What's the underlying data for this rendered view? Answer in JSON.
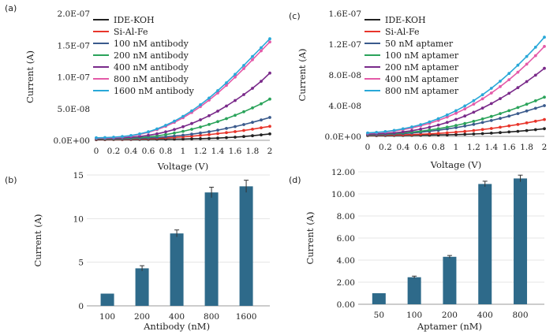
{
  "chart_data": [
    {
      "panel": "(a)",
      "type": "line",
      "xlabel": "Voltage (V)",
      "ylabel": "Current (A)",
      "x": [
        0,
        0.1,
        0.2,
        0.3,
        0.4,
        0.5,
        0.6,
        0.7,
        0.8,
        0.9,
        1.0,
        1.1,
        1.2,
        1.3,
        1.4,
        1.5,
        1.6,
        1.7,
        1.8,
        1.9,
        2.0
      ],
      "x_tick_labels": [
        "0",
        "0.2",
        "0.4",
        "0.6",
        "0.8",
        "1",
        "1.2",
        "1.4",
        "1.6",
        "1.8",
        "2"
      ],
      "y_tick_labels": [
        "0.0E+00",
        "5.0E-08",
        "1.0E-07",
        "1.5E-07",
        "2.0E-07"
      ],
      "xlim": [
        0,
        2
      ],
      "ylim": [
        0,
        2e-07
      ],
      "legend_position": "top-left",
      "series": [
        {
          "name": "IDE-KOH",
          "color": "#222222",
          "values": [
            1e-09,
            1.1e-09,
            1.2e-09,
            1.3e-09,
            1.4e-09,
            1.5e-09,
            1.6e-09,
            1.7e-09,
            1.8e-09,
            1.9e-09,
            2e-09,
            2.3e-09,
            2.6e-09,
            3e-09,
            3.5e-09,
            4.2e-09,
            5e-09,
            6e-09,
            7.2e-09,
            8.6e-09,
            1e-08
          ]
        },
        {
          "name": "Si-Al-Fe",
          "color": "#e8352b",
          "values": [
            1.5e-09,
            1.6e-09,
            1.7e-09,
            1.8e-09,
            2e-09,
            2.3e-09,
            2.7e-09,
            3.2e-09,
            3.8e-09,
            4.6e-09,
            5.5e-09,
            6.5e-09,
            7.7e-09,
            9e-09,
            1.05e-08,
            1.2e-08,
            1.37e-08,
            1.55e-08,
            1.75e-08,
            1.98e-08,
            2.2e-08
          ]
        },
        {
          "name": "100 nM antibody",
          "color": "#3a5a8c",
          "values": [
            2e-09,
            2.1e-09,
            2.2e-09,
            2.4e-09,
            2.7e-09,
            3.1e-09,
            3.7e-09,
            4.5e-09,
            5.5e-09,
            6.7e-09,
            8.1e-09,
            9.7e-09,
            1.15e-08,
            1.36e-08,
            1.6e-08,
            1.87e-08,
            2.16e-08,
            2.48e-08,
            2.83e-08,
            3.2e-08,
            3.6e-08
          ]
        },
        {
          "name": "200 nM antibody",
          "color": "#2aa35a",
          "values": [
            2.5e-09,
            2.6e-09,
            2.8e-09,
            3.1e-09,
            3.6e-09,
            4.4e-09,
            5.5e-09,
            7e-09,
            9e-09,
            1.14e-08,
            1.42e-08,
            1.74e-08,
            2.1e-08,
            2.5e-08,
            2.94e-08,
            3.42e-08,
            3.94e-08,
            4.5e-08,
            5.1e-08,
            5.75e-08,
            6.5e-08
          ]
        },
        {
          "name": "400 nM antibody",
          "color": "#7a2a8a",
          "values": [
            3e-09,
            3.2e-09,
            3.5e-09,
            4e-09,
            4.8e-09,
            6e-09,
            7.8e-09,
            1.02e-08,
            1.33e-08,
            1.7e-08,
            2.14e-08,
            2.65e-08,
            3.23e-08,
            3.88e-08,
            4.6e-08,
            5.4e-08,
            6.27e-08,
            7.2e-08,
            8.2e-08,
            9.3e-08,
            1.06e-07
          ]
        },
        {
          "name": "800 nM antibody",
          "color": "#e45aa8",
          "values": [
            3.5e-09,
            3.8e-09,
            4.3e-09,
            5.2e-09,
            6.8e-09,
            9.2e-09,
            1.25e-08,
            1.68e-08,
            2.2e-08,
            2.82e-08,
            3.55e-08,
            4.38e-08,
            5.3e-08,
            6.33e-08,
            7.45e-08,
            8.66e-08,
            9.96e-08,
            1.13e-07,
            1.27e-07,
            1.41e-07,
            1.55e-07
          ]
        },
        {
          "name": "1600 nM antibody",
          "color": "#29a8d8",
          "values": [
            4e-09,
            4.4e-09,
            5e-09,
            6e-09,
            7.6e-09,
            1e-08,
            1.34e-08,
            1.8e-08,
            2.36e-08,
            3.02e-08,
            3.78e-08,
            4.64e-08,
            5.6e-08,
            6.66e-08,
            7.82e-08,
            9.07e-08,
            1.04e-07,
            1.18e-07,
            1.32e-07,
            1.46e-07,
            1.6e-07
          ]
        }
      ]
    },
    {
      "panel": "(b)",
      "type": "bar",
      "xlabel": "Antibody (nM)",
      "ylabel": "Current (A)",
      "categories": [
        "100",
        "200",
        "400",
        "800",
        "1600"
      ],
      "values": [
        1.4,
        4.3,
        8.3,
        13.0,
        13.7
      ],
      "errors": [
        0,
        0.3,
        0.4,
        0.6,
        0.7
      ],
      "y_tick_labels": [
        "0",
        "5",
        "10",
        "15"
      ],
      "ylim": [
        0,
        15
      ],
      "color": "#2e6a8a"
    },
    {
      "panel": "(c)",
      "type": "line",
      "xlabel": "Voltage (V)",
      "ylabel": "Current (A)",
      "x": [
        0,
        0.1,
        0.2,
        0.3,
        0.4,
        0.5,
        0.6,
        0.7,
        0.8,
        0.9,
        1.0,
        1.1,
        1.2,
        1.3,
        1.4,
        1.5,
        1.6,
        1.7,
        1.8,
        1.9,
        2.0
      ],
      "x_tick_labels": [
        "0",
        "0.2",
        "0.4",
        "0.6",
        "0.8",
        "1",
        "1.2",
        "1.4",
        "1.6",
        "1.8",
        "2"
      ],
      "y_tick_labels": [
        "0.0E+00",
        "4.0E-08",
        "8.0E-08",
        "1.2E-07",
        "1.6E-07"
      ],
      "xlim": [
        0,
        2
      ],
      "ylim": [
        0,
        1.6e-07
      ],
      "legend_position": "top-left",
      "series": [
        {
          "name": "IDE-KOH",
          "color": "#222222",
          "values": [
            1e-09,
            1e-09,
            1.1e-09,
            1.2e-09,
            1.3e-09,
            1.4e-09,
            1.5e-09,
            1.6e-09,
            1.8e-09,
            2e-09,
            2.3e-09,
            2.7e-09,
            3.1e-09,
            3.6e-09,
            4.2e-09,
            4.9e-09,
            5.7e-09,
            6.6e-09,
            7.6e-09,
            8.7e-09,
            1e-08
          ]
        },
        {
          "name": "Si-Al-Fe",
          "color": "#e8352b",
          "values": [
            1.5e-09,
            1.6e-09,
            1.7e-09,
            1.9e-09,
            2.1e-09,
            2.4e-09,
            2.8e-09,
            3.3e-09,
            3.9e-09,
            4.6e-09,
            5.5e-09,
            6.5e-09,
            7.6e-09,
            8.9e-09,
            1.03e-08,
            1.19e-08,
            1.36e-08,
            1.55e-08,
            1.75e-08,
            1.97e-08,
            2.2e-08
          ]
        },
        {
          "name": "50 nM aptamer",
          "color": "#3a5a8c",
          "values": [
            2e-09,
            2.2e-09,
            2.5e-09,
            3e-09,
            3.6e-09,
            4.4e-09,
            5.4e-09,
            6.6e-09,
            8e-09,
            9.6e-09,
            1.14e-08,
            1.34e-08,
            1.56e-08,
            1.8e-08,
            2.06e-08,
            2.34e-08,
            2.64e-08,
            2.96e-08,
            3.3e-08,
            3.65e-08,
            4e-08
          ]
        },
        {
          "name": "100 nM aptamer",
          "color": "#2aa35a",
          "values": [
            2.5e-09,
            2.8e-09,
            3.2e-09,
            3.8e-09,
            4.6e-09,
            5.6e-09,
            6.8e-09,
            8.3e-09,
            1e-08,
            1.2e-08,
            1.43e-08,
            1.68e-08,
            1.96e-08,
            2.27e-08,
            2.6e-08,
            2.96e-08,
            3.34e-08,
            3.75e-08,
            4.18e-08,
            4.63e-08,
            5.1e-08
          ]
        },
        {
          "name": "200 nM aptamer",
          "color": "#7a2a8a",
          "values": [
            3e-09,
            3.3e-09,
            3.8e-09,
            4.6e-09,
            5.8e-09,
            7.4e-09,
            9.4e-09,
            1.19e-08,
            1.48e-08,
            1.82e-08,
            2.21e-08,
            2.65e-08,
            3.14e-08,
            3.68e-08,
            4.27e-08,
            4.91e-08,
            5.6e-08,
            6.34e-08,
            7.13e-08,
            7.96e-08,
            8.85e-08
          ]
        },
        {
          "name": "400 nM aptamer",
          "color": "#e45aa8",
          "values": [
            4e-09,
            4.6e-09,
            5.6e-09,
            7e-09,
            8.8e-09,
            1.1e-08,
            1.37e-08,
            1.69e-08,
            2.07e-08,
            2.51e-08,
            3.01e-08,
            3.57e-08,
            4.19e-08,
            4.88e-08,
            5.64e-08,
            6.47e-08,
            7.37e-08,
            8.35e-08,
            9.4e-08,
            1.05e-07,
            1.17e-07
          ]
        },
        {
          "name": "800 nM aptamer",
          "color": "#29a8d8",
          "values": [
            4.5e-09,
            5.2e-09,
            6.3e-09,
            7.8e-09,
            9.8e-09,
            1.23e-08,
            1.53e-08,
            1.89e-08,
            2.31e-08,
            2.79e-08,
            3.34e-08,
            3.96e-08,
            4.65e-08,
            5.42e-08,
            6.26e-08,
            7.18e-08,
            8.18e-08,
            9.26e-08,
            1.04e-07,
            1.16e-07,
            1.29e-07
          ]
        }
      ]
    },
    {
      "panel": "(d)",
      "type": "bar",
      "xlabel": "Aptamer (nM)",
      "ylabel": "Current (A)",
      "categories": [
        "50",
        "100",
        "200",
        "400",
        "800"
      ],
      "values": [
        1.0,
        2.45,
        4.3,
        10.9,
        11.4
      ],
      "errors": [
        0,
        0.1,
        0.12,
        0.25,
        0.3
      ],
      "y_tick_labels": [
        "0.00",
        "2.00",
        "4.00",
        "6.00",
        "8.00",
        "10.00",
        "12.00"
      ],
      "ylim": [
        0,
        12
      ],
      "color": "#2e6a8a"
    }
  ]
}
